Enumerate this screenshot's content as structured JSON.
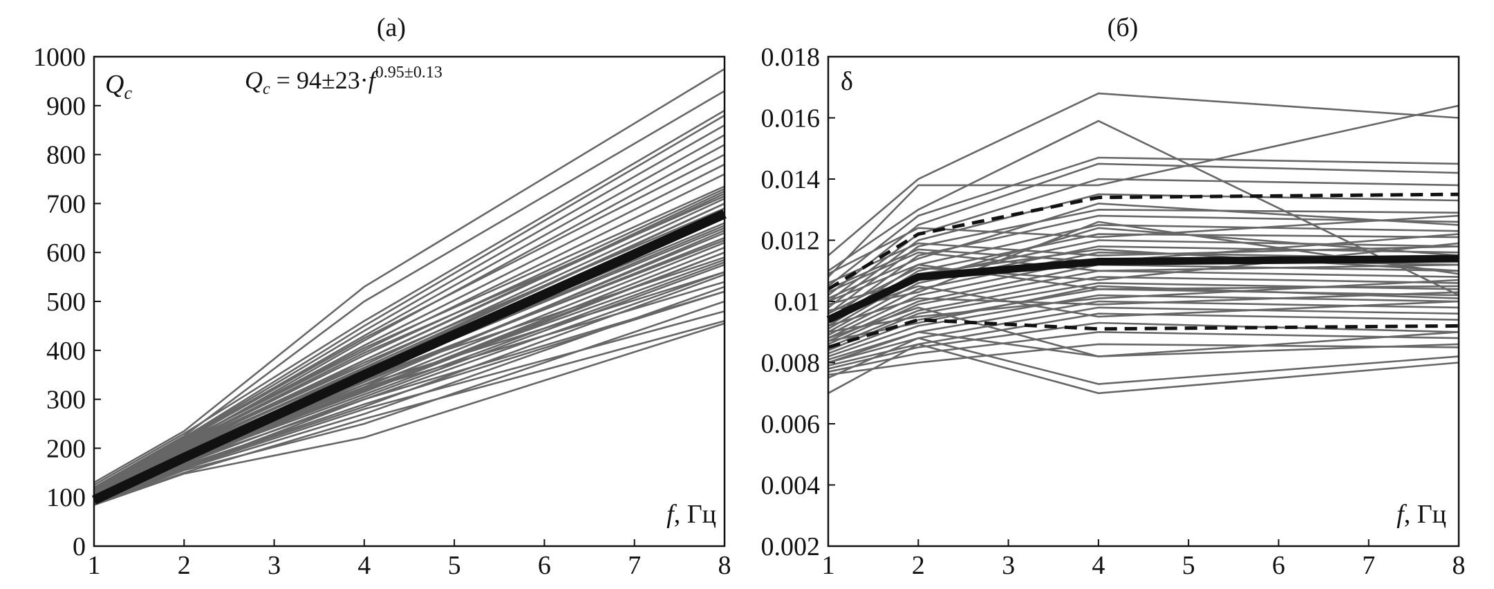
{
  "figure": {
    "panel_a_title": "(а)",
    "panel_b_title": "(б)"
  },
  "chart_data": [
    {
      "type": "line",
      "title": "(а)",
      "ylabel": "Q",
      "ylabel_sub": "c",
      "xlabel": "f",
      "xlabel_unit": ", Гц",
      "formula": {
        "lhs": "Q",
        "lhs_sub": "c",
        "rhs": " = 94±23·",
        "base": "f",
        "exp": "0.95±0.13"
      },
      "xlim": [
        1,
        8
      ],
      "ylim": [
        0,
        1000
      ],
      "xticks": [
        1,
        2,
        3,
        4,
        5,
        6,
        7,
        8
      ],
      "yticks": [
        0,
        100,
        200,
        300,
        400,
        500,
        600,
        700,
        800,
        900,
        1000
      ],
      "x": [
        1,
        2,
        4,
        8
      ],
      "colors": {
        "individual": "#666666",
        "mean": "#111111"
      },
      "mean": [
        94,
        181,
        350,
        679
      ],
      "individual": [
        [
          85,
          160,
          300,
          560
        ],
        [
          95,
          180,
          340,
          680
        ],
        [
          105,
          200,
          380,
          720
        ],
        [
          90,
          170,
          320,
          600
        ],
        [
          100,
          190,
          360,
          700
        ],
        [
          110,
          210,
          420,
          820
        ],
        [
          120,
          225,
          500,
          930
        ],
        [
          130,
          235,
          530,
          975
        ],
        [
          88,
          165,
          290,
          520
        ],
        [
          92,
          175,
          310,
          580
        ],
        [
          98,
          185,
          335,
          640
        ],
        [
          102,
          195,
          355,
          660
        ],
        [
          108,
          205,
          370,
          710
        ],
        [
          112,
          215,
          400,
          760
        ],
        [
          118,
          220,
          440,
          860
        ],
        [
          125,
          230,
          460,
          890
        ],
        [
          86,
          150,
          260,
          460
        ],
        [
          90,
          160,
          280,
          480
        ],
        [
          96,
          172,
          300,
          520
        ],
        [
          100,
          182,
          320,
          540
        ],
        [
          104,
          188,
          330,
          560
        ],
        [
          106,
          192,
          345,
          590
        ],
        [
          94,
          178,
          315,
          600
        ],
        [
          97,
          183,
          325,
          620
        ],
        [
          101,
          187,
          338,
          630
        ],
        [
          103,
          193,
          348,
          650
        ],
        [
          107,
          198,
          362,
          670
        ],
        [
          109,
          202,
          375,
          690
        ],
        [
          111,
          208,
          390,
          730
        ],
        [
          113,
          212,
          410,
          780
        ],
        [
          115,
          216,
          425,
          800
        ],
        [
          117,
          218,
          430,
          840
        ],
        [
          119,
          222,
          450,
          880
        ],
        [
          84,
          148,
          222,
          455
        ],
        [
          87,
          155,
          250,
          500
        ],
        [
          89,
          158,
          270,
          530
        ],
        [
          91,
          163,
          285,
          555
        ],
        [
          93,
          168,
          305,
          575
        ],
        [
          95,
          174,
          318,
          610
        ],
        [
          99,
          180,
          330,
          645
        ],
        [
          105,
          196,
          352,
          675
        ],
        [
          108,
          200,
          365,
          700
        ],
        [
          112,
          206,
          380,
          725
        ],
        [
          114,
          210,
          395,
          715
        ],
        [
          116,
          214,
          405,
          735
        ],
        [
          99,
          186,
          342,
          625
        ],
        [
          103,
          190,
          350,
          655
        ],
        [
          95,
          176,
          322,
          585
        ]
      ]
    },
    {
      "type": "line",
      "title": "(б)",
      "ylabel": "δ",
      "xlabel": "f",
      "xlabel_unit": ", Гц",
      "xlim": [
        1,
        8
      ],
      "ylim": [
        0.002,
        0.018
      ],
      "xticks": [
        1,
        2,
        3,
        4,
        5,
        6,
        7,
        8
      ],
      "yticks": [
        "0.002",
        "0.004",
        "0.006",
        "0.008",
        "0.01",
        "0.012",
        "0.014",
        "0.016",
        "0.018"
      ],
      "x": [
        1,
        2,
        4,
        8
      ],
      "colors": {
        "individual": "#666666",
        "mean": "#111111",
        "bounds": "#111111"
      },
      "mean": [
        0.0094,
        0.0108,
        0.0113,
        0.0114
      ],
      "upper_bound": [
        0.0104,
        0.0122,
        0.0134,
        0.0135
      ],
      "lower_bound": [
        0.0085,
        0.0094,
        0.0091,
        0.0092
      ],
      "individual": [
        [
          0.0115,
          0.014,
          0.0168,
          0.016
        ],
        [
          0.011,
          0.013,
          0.0159,
          0.0102
        ],
        [
          0.0108,
          0.0138,
          0.0138,
          0.0164
        ],
        [
          0.0105,
          0.0128,
          0.0147,
          0.0145
        ],
        [
          0.0102,
          0.0125,
          0.0145,
          0.0142
        ],
        [
          0.01,
          0.0122,
          0.014,
          0.0138
        ],
        [
          0.0098,
          0.012,
          0.0135,
          0.0133
        ],
        [
          0.0096,
          0.0118,
          0.013,
          0.0129
        ],
        [
          0.0094,
          0.0115,
          0.0128,
          0.0126
        ],
        [
          0.0093,
          0.0112,
          0.0125,
          0.0123
        ],
        [
          0.0092,
          0.011,
          0.0122,
          0.0121
        ],
        [
          0.0091,
          0.0108,
          0.012,
          0.0118
        ],
        [
          0.009,
          0.0106,
          0.0118,
          0.0116
        ],
        [
          0.0089,
          0.0104,
          0.0116,
          0.0114
        ],
        [
          0.0088,
          0.0102,
          0.0114,
          0.0112
        ],
        [
          0.0087,
          0.01,
          0.0112,
          0.011
        ],
        [
          0.0086,
          0.0099,
          0.011,
          0.0108
        ],
        [
          0.0085,
          0.0097,
          0.0108,
          0.0106
        ],
        [
          0.0084,
          0.0096,
          0.0106,
          0.0104
        ],
        [
          0.0083,
          0.0094,
          0.0104,
          0.0102
        ],
        [
          0.0082,
          0.0092,
          0.0102,
          0.01
        ],
        [
          0.0081,
          0.009,
          0.01,
          0.0098
        ],
        [
          0.008,
          0.0088,
          0.0098,
          0.0096
        ],
        [
          0.0079,
          0.0086,
          0.0096,
          0.0094
        ],
        [
          0.0078,
          0.0085,
          0.0093,
          0.009
        ],
        [
          0.0077,
          0.0083,
          0.009,
          0.0088
        ],
        [
          0.0076,
          0.008,
          0.0086,
          0.0085
        ],
        [
          0.007,
          0.0086,
          0.007,
          0.008
        ],
        [
          0.0075,
          0.0088,
          0.0073,
          0.0082
        ],
        [
          0.008,
          0.009,
          0.0082,
          0.0086
        ],
        [
          0.0088,
          0.0098,
          0.0082,
          0.009
        ],
        [
          0.0095,
          0.0105,
          0.0095,
          0.01
        ],
        [
          0.01,
          0.0112,
          0.0104,
          0.0105
        ],
        [
          0.0103,
          0.0116,
          0.011,
          0.0112
        ],
        [
          0.0106,
          0.0119,
          0.0115,
          0.0118
        ],
        [
          0.0109,
          0.0124,
          0.0121,
          0.0128
        ],
        [
          0.0099,
          0.0107,
          0.0124,
          0.0115
        ],
        [
          0.0097,
          0.0103,
          0.0126,
          0.0109
        ],
        [
          0.0092,
          0.0101,
          0.0099,
          0.0103
        ],
        [
          0.009,
          0.0095,
          0.0101,
          0.0107
        ],
        [
          0.0101,
          0.0114,
          0.0132,
          0.0125
        ],
        [
          0.0104,
          0.0117,
          0.0113,
          0.0122
        ],
        [
          0.0094,
          0.0109,
          0.0117,
          0.011
        ],
        [
          0.0087,
          0.0093,
          0.0105,
          0.0101
        ],
        [
          0.0096,
          0.0111,
          0.0107,
          0.0119
        ]
      ]
    }
  ]
}
